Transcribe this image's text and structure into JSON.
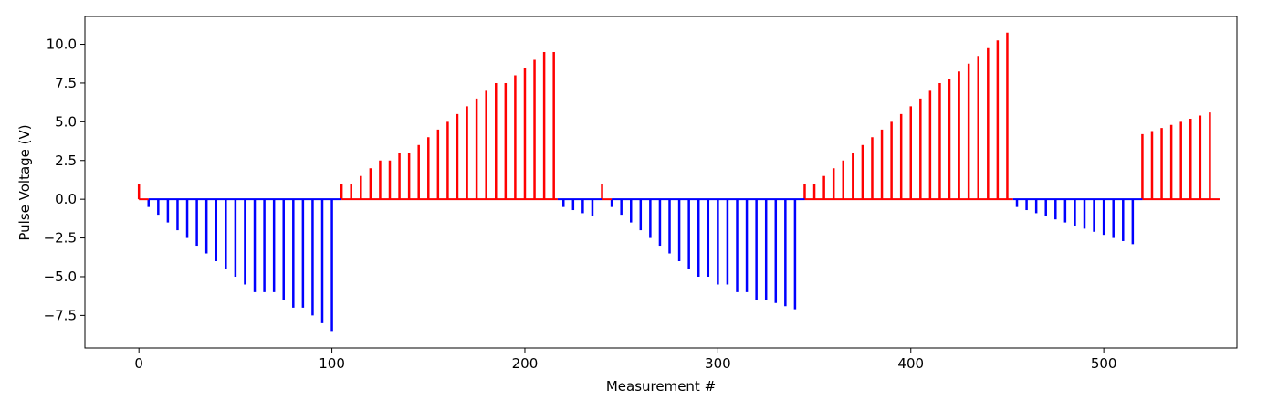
{
  "chart_data": {
    "type": "bar",
    "xlabel": "Measurement #",
    "ylabel": "Pulse Voltage (V)",
    "xlim": [
      -28,
      569
    ],
    "ylim": [
      -9.6,
      11.8
    ],
    "x_ticks": [
      0,
      100,
      200,
      300,
      400,
      500
    ],
    "x_tick_labels": [
      "0",
      "100",
      "200",
      "300",
      "400",
      "500"
    ],
    "y_ticks": [
      -7.5,
      -5.0,
      -2.5,
      0.0,
      2.5,
      5.0,
      7.5,
      10.0
    ],
    "y_tick_labels": [
      "−7.5",
      "−5.0",
      "−2.5",
      "0.0",
      "2.5",
      "5.0",
      "7.5",
      "10.0"
    ],
    "grid": false,
    "colors": {
      "positive": "#ff0000",
      "negative": "#0000ff"
    },
    "baselines": [
      {
        "x_start": 0,
        "x_end": 5,
        "color": "#ff0000"
      },
      {
        "x_start": 5,
        "x_end": 105,
        "color": "#0000ff"
      },
      {
        "x_start": 105,
        "x_end": 217,
        "color": "#ff0000"
      },
      {
        "x_start": 217,
        "x_end": 240,
        "color": "#0000ff"
      },
      {
        "x_start": 240,
        "x_end": 245,
        "color": "#ff0000"
      },
      {
        "x_start": 245,
        "x_end": 345,
        "color": "#0000ff"
      },
      {
        "x_start": 345,
        "x_end": 453,
        "color": "#ff0000"
      },
      {
        "x_start": 453,
        "x_end": 520,
        "color": "#0000ff"
      },
      {
        "x_start": 520,
        "x_end": 560,
        "color": "#ff0000"
      }
    ],
    "series": [
      {
        "x": [
          0,
          5,
          10,
          15,
          20,
          25,
          30,
          35,
          40,
          45,
          50,
          55,
          60,
          65,
          70,
          75,
          80,
          85,
          90,
          95,
          100,
          105,
          110,
          115,
          120,
          125,
          130,
          135,
          140,
          145,
          150,
          155,
          160,
          165,
          170,
          175,
          180,
          185,
          190,
          195,
          200,
          205,
          210,
          215,
          220,
          225,
          230,
          235,
          240,
          245,
          250,
          255,
          260,
          265,
          270,
          275,
          280,
          285,
          290,
          295,
          300,
          305,
          310,
          315,
          320,
          325,
          330,
          335,
          340,
          345,
          350,
          355,
          360,
          365,
          370,
          375,
          380,
          385,
          390,
          395,
          400,
          405,
          410,
          415,
          420,
          425,
          430,
          435,
          440,
          445,
          450,
          455,
          460,
          465,
          470,
          475,
          480,
          485,
          490,
          495,
          500,
          505,
          510,
          515,
          520,
          525,
          530,
          535,
          540,
          545,
          550,
          555
        ],
        "values": [
          1.0,
          -0.5,
          -1.0,
          -1.5,
          -2.0,
          -2.5,
          -3.0,
          -3.5,
          -4.0,
          -4.5,
          -5.0,
          -5.5,
          -6.0,
          -6.0,
          -6.0,
          -6.5,
          -7.0,
          -7.0,
          -7.5,
          -8.0,
          -8.5,
          1.0,
          1.0,
          1.5,
          2.0,
          2.5,
          2.5,
          3.0,
          3.0,
          3.5,
          4.0,
          4.5,
          5.0,
          5.5,
          6.0,
          6.5,
          7.0,
          7.5,
          7.5,
          8.0,
          8.5,
          9.0,
          9.5,
          9.5,
          -0.5,
          -0.7,
          -0.9,
          -1.1,
          1.0,
          -0.5,
          -1.0,
          -1.5,
          -2.0,
          -2.5,
          -3.0,
          -3.5,
          -4.0,
          -4.5,
          -5.0,
          -5.0,
          -5.5,
          -5.5,
          -6.0,
          -6.0,
          -6.5,
          -6.5,
          -6.7,
          -6.9,
          -7.1,
          1.0,
          1.0,
          1.5,
          2.0,
          2.5,
          3.0,
          3.5,
          4.0,
          4.5,
          5.0,
          5.5,
          6.0,
          6.5,
          7.0,
          7.5,
          7.75,
          8.25,
          8.75,
          9.25,
          9.75,
          10.25,
          10.75,
          -0.5,
          -0.7,
          -0.9,
          -1.1,
          -1.3,
          -1.5,
          -1.7,
          -1.9,
          -2.1,
          -2.3,
          -2.5,
          -2.7,
          -2.9,
          4.2,
          4.4,
          4.6,
          4.8,
          5.0,
          5.2,
          5.4,
          5.6
        ]
      }
    ]
  }
}
